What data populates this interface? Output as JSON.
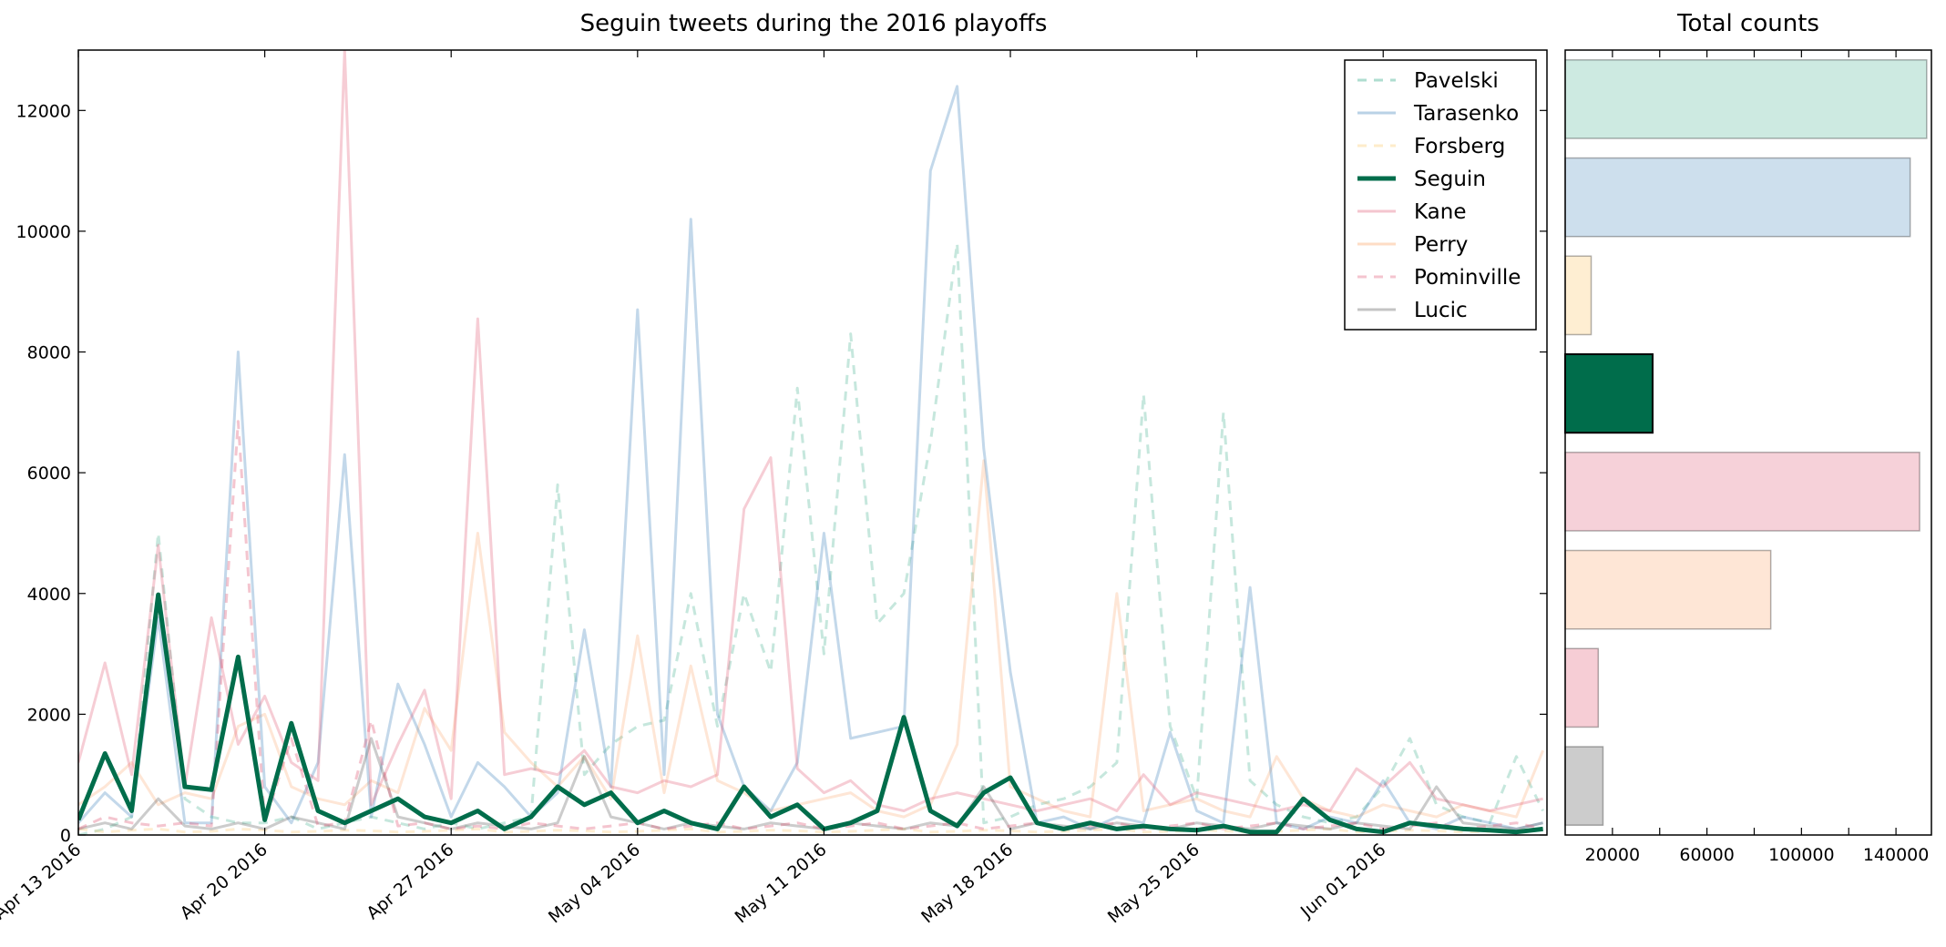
{
  "chart_data": [
    {
      "type": "line",
      "title": "Seguin tweets during the 2016 playoffs",
      "xlabel": "",
      "ylabel": "",
      "x_start": "2016-04-13",
      "x": [
        "Apr 13",
        "Apr 14",
        "Apr 15",
        "Apr 16",
        "Apr 17",
        "Apr 18",
        "Apr 19",
        "Apr 20",
        "Apr 21",
        "Apr 22",
        "Apr 23",
        "Apr 24",
        "Apr 25",
        "Apr 26",
        "Apr 27",
        "Apr 28",
        "Apr 29",
        "Apr 30",
        "May 01",
        "May 02",
        "May 03",
        "May 04",
        "May 05",
        "May 06",
        "May 07",
        "May 08",
        "May 09",
        "May 10",
        "May 11",
        "May 12",
        "May 13",
        "May 14",
        "May 15",
        "May 16",
        "May 17",
        "May 18",
        "May 19",
        "May 20",
        "May 21",
        "May 22",
        "May 23",
        "May 24",
        "May 25",
        "May 26",
        "May 27",
        "May 28",
        "May 29",
        "May 30",
        "May 31",
        "Jun 01",
        "Jun 02",
        "Jun 03",
        "Jun 04",
        "Jun 05",
        "Jun 06",
        "Jun 07"
      ],
      "xticks": [
        "Apr 13 2016",
        "Apr 20 2016",
        "Apr 27 2016",
        "May 04 2016",
        "May 11 2016",
        "May 18 2016",
        "May 25 2016",
        "Jun 01 2016"
      ],
      "ylim": [
        0,
        13000
      ],
      "yticks": [
        0,
        2000,
        4000,
        6000,
        8000,
        10000,
        12000
      ],
      "legend": "top-right",
      "series": [
        {
          "name": "Pavelski",
          "color": "#1b9e77",
          "dash": true,
          "width": 3,
          "opacity": 0.25,
          "values": [
            0,
            100,
            300,
            5000,
            600,
            300,
            200,
            200,
            300,
            100,
            200,
            300,
            200,
            100,
            200,
            100,
            200,
            300,
            5800,
            1000,
            1500,
            1800,
            1900,
            4000,
            1800,
            4000,
            2700,
            7400,
            3000,
            8300,
            3500,
            4000,
            6500,
            9800,
            200,
            300,
            500,
            600,
            800,
            1200,
            7300,
            1800,
            600,
            7000,
            900,
            500,
            300,
            200,
            300,
            800,
            1600,
            500,
            300,
            200,
            1300,
            400
          ]
        },
        {
          "name": "Tarasenko",
          "color": "#377eb8",
          "dash": false,
          "width": 3,
          "opacity": 0.3,
          "values": [
            200,
            700,
            300,
            3600,
            200,
            200,
            8000,
            800,
            200,
            1200,
            6300,
            300,
            2500,
            1500,
            300,
            1200,
            800,
            300,
            700,
            3400,
            800,
            8700,
            1000,
            10200,
            2000,
            800,
            400,
            1200,
            5000,
            1600,
            1700,
            1800,
            11000,
            12400,
            6400,
            2700,
            200,
            300,
            100,
            300,
            200,
            1700,
            400,
            200,
            4100,
            200,
            100,
            300,
            200,
            900,
            200,
            100,
            300,
            200,
            100,
            200
          ]
        },
        {
          "name": "Forsberg",
          "color": "#fdc86a",
          "dash": true,
          "width": 3,
          "opacity": 0.3,
          "values": [
            100,
            50,
            80,
            100,
            50,
            60,
            100,
            80,
            50,
            60,
            80,
            70,
            50,
            60,
            80,
            100,
            50,
            60,
            80,
            70,
            50,
            60,
            80,
            100,
            50,
            60,
            80,
            70,
            50,
            60,
            80,
            100,
            50,
            60,
            80,
            70,
            50,
            60,
            80,
            100,
            50,
            60,
            80,
            70,
            50,
            60,
            80,
            100,
            50,
            60,
            80,
            70,
            50,
            60,
            80,
            100
          ]
        },
        {
          "name": "Seguin",
          "color": "#006d4b",
          "dash": false,
          "width": 5,
          "opacity": 1,
          "values": [
            250,
            1350,
            400,
            3980,
            800,
            750,
            2950,
            250,
            1850,
            400,
            200,
            400,
            600,
            300,
            200,
            400,
            100,
            300,
            800,
            500,
            700,
            200,
            400,
            200,
            100,
            800,
            300,
            500,
            100,
            200,
            400,
            1950,
            400,
            150,
            700,
            950,
            200,
            100,
            200,
            100,
            150,
            100,
            80,
            150,
            50,
            50,
            600,
            250,
            100,
            50,
            200,
            150,
            100,
            80,
            50,
            100
          ]
        },
        {
          "name": "Kane",
          "color": "#e05a75",
          "dash": false,
          "width": 3,
          "opacity": 0.3,
          "values": [
            1200,
            2850,
            1000,
            4800,
            800,
            3600,
            1500,
            2300,
            1200,
            900,
            13000,
            500,
            1500,
            2400,
            600,
            8550,
            1000,
            1100,
            1000,
            1400,
            800,
            700,
            900,
            800,
            1000,
            5400,
            6250,
            1100,
            700,
            900,
            500,
            400,
            600,
            700,
            600,
            500,
            400,
            500,
            600,
            400,
            1000,
            500,
            700,
            600,
            500,
            400,
            500,
            400,
            1100,
            800,
            1200,
            600,
            500,
            400,
            500,
            600
          ]
        },
        {
          "name": "Perry",
          "color": "#fc9d5a",
          "dash": false,
          "width": 3,
          "opacity": 0.25,
          "values": [
            500,
            800,
            1200,
            500,
            700,
            600,
            1800,
            2000,
            800,
            600,
            500,
            900,
            700,
            2100,
            1400,
            5000,
            1700,
            1200,
            800,
            1300,
            600,
            3300,
            700,
            2800,
            900,
            700,
            400,
            500,
            600,
            700,
            400,
            300,
            500,
            1500,
            6200,
            800,
            600,
            400,
            300,
            4000,
            400,
            500,
            600,
            400,
            300,
            1300,
            600,
            400,
            300,
            500,
            400,
            300,
            500,
            400,
            300,
            1400
          ]
        },
        {
          "name": "Pominville",
          "color": "#e05a75",
          "dash": true,
          "width": 3,
          "opacity": 0.35,
          "values": [
            100,
            300,
            200,
            150,
            200,
            150,
            6850,
            200,
            1600,
            150,
            200,
            1900,
            150,
            200,
            100,
            150,
            100,
            200,
            150,
            100,
            150,
            200,
            100,
            150,
            200,
            100,
            150,
            200,
            100,
            150,
            200,
            100,
            150,
            200,
            100,
            150,
            200,
            100,
            150,
            200,
            100,
            150,
            200,
            100,
            150,
            200,
            100,
            150,
            200,
            100,
            150,
            200,
            100,
            150,
            200,
            100
          ]
        },
        {
          "name": "Lucic",
          "color": "#555555",
          "dash": false,
          "width": 3,
          "opacity": 0.3,
          "values": [
            100,
            200,
            100,
            600,
            150,
            100,
            200,
            100,
            300,
            200,
            100,
            1600,
            300,
            200,
            100,
            200,
            150,
            100,
            200,
            1300,
            300,
            200,
            100,
            200,
            150,
            100,
            200,
            150,
            100,
            200,
            150,
            100,
            200,
            150,
            800,
            100,
            200,
            150,
            100,
            200,
            150,
            100,
            200,
            150,
            100,
            200,
            150,
            100,
            200,
            150,
            100,
            800,
            200,
            150,
            100,
            200
          ]
        }
      ]
    },
    {
      "type": "bar",
      "orientation": "horizontal",
      "title": "Total counts",
      "xlim": [
        0,
        155000
      ],
      "xticks": [
        20000,
        60000,
        100000,
        140000
      ],
      "categories": [
        "Pavelski",
        "Tarasenko",
        "Forsberg",
        "Seguin",
        "Kane",
        "Perry",
        "Pominville",
        "Lucic"
      ],
      "values": [
        153000,
        146000,
        11000,
        37000,
        150000,
        87000,
        14000,
        16000
      ],
      "colors": [
        "#1b9e77",
        "#377eb8",
        "#fdc86a",
        "#006d4b",
        "#e05a75",
        "#fc9d5a",
        "#e05a75",
        "#555555"
      ],
      "opacity": [
        0.22,
        0.25,
        0.3,
        1,
        0.28,
        0.25,
        0.3,
        0.3
      ]
    }
  ]
}
